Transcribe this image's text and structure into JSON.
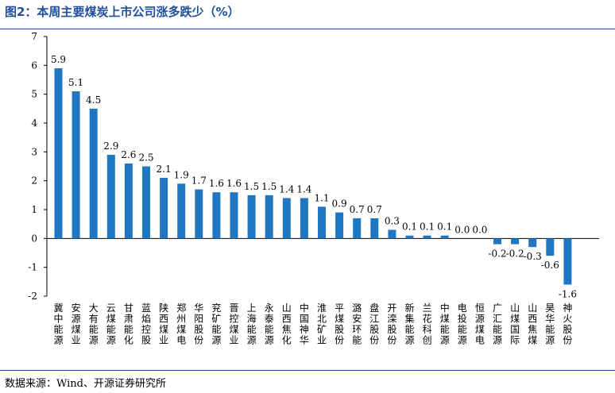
{
  "title": "图2：本周主要煤炭上市公司涨多跌少（%）",
  "source": "数据来源：Wind、开源证券研究所",
  "colors": {
    "bar": "#1f77c4",
    "accent": "#1f4e9c",
    "axis": "#000000"
  },
  "chart_data": {
    "type": "bar",
    "categories": [
      "冀中能源",
      "安源煤业",
      "大有能源",
      "云煤能源",
      "甘肃能化",
      "蓝焰控股",
      "陕西煤业",
      "郑州煤电",
      "华阳股份",
      "兖矿能源",
      "晋控煤业",
      "上海能源",
      "永泰能源",
      "山西焦化",
      "中国神华",
      "淮北矿业",
      "平煤股份",
      "潞安环能",
      "盘江股份",
      "开滦股份",
      "新集能源",
      "兰花科创",
      "中煤能源",
      "电投能源",
      "恒源煤电",
      "广汇能源",
      "山煤国际",
      "山西焦煤",
      "昊华能源",
      "神火股份"
    ],
    "values": [
      5.9,
      5.1,
      4.5,
      2.9,
      2.6,
      2.5,
      2.1,
      1.9,
      1.7,
      1.6,
      1.6,
      1.5,
      1.5,
      1.4,
      1.4,
      1.1,
      0.9,
      0.7,
      0.7,
      0.3,
      0.1,
      0.1,
      0.1,
      0.0,
      0.0,
      -0.2,
      -0.2,
      -0.3,
      -0.6,
      -1.6
    ],
    "labels": [
      "5.9",
      "5.1",
      "4.5",
      "2.9",
      "2.6",
      "2.5",
      "2.1",
      "1.9",
      "1.7",
      "1.6",
      "1.6",
      "1.5",
      "1.5",
      "1.4",
      "1.4",
      "1.1",
      "0.9",
      "0.7",
      "0.7",
      "0.3",
      "0.1",
      "0.1",
      "0.1",
      "0.0",
      "0.0",
      "-0.2",
      "-0.2",
      "-0.3",
      "-0.6",
      "-1.6"
    ],
    "ylim": [
      -2,
      7
    ],
    "yticks": [
      -2,
      -1,
      0,
      1,
      2,
      3,
      4,
      5,
      6,
      7
    ],
    "xlabel": "",
    "ylabel": "",
    "grid": false,
    "legend": false
  }
}
